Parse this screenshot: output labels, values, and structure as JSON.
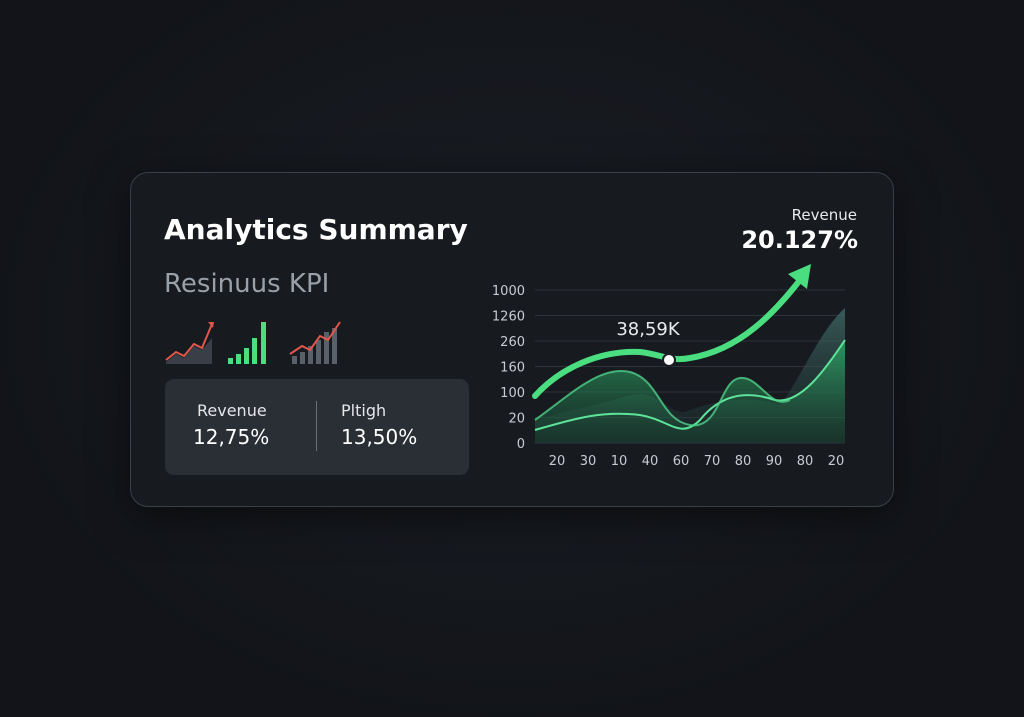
{
  "header": {
    "title": "Analytics Summary",
    "subtitle": "Resinuus KPI"
  },
  "kpis": [
    {
      "label": "Revenue",
      "value": "12,75%"
    },
    {
      "label": "Pltigh",
      "value": "13,50%"
    }
  ],
  "chart": {
    "headline": {
      "label": "Revenue",
      "value": "20.127%"
    },
    "annotation": "38,59K",
    "y_labels": [
      1000,
      1260,
      260,
      160,
      100,
      20,
      0
    ],
    "x_labels": [
      20,
      30,
      10,
      40,
      60,
      70,
      80,
      90,
      80,
      20
    ]
  }
}
